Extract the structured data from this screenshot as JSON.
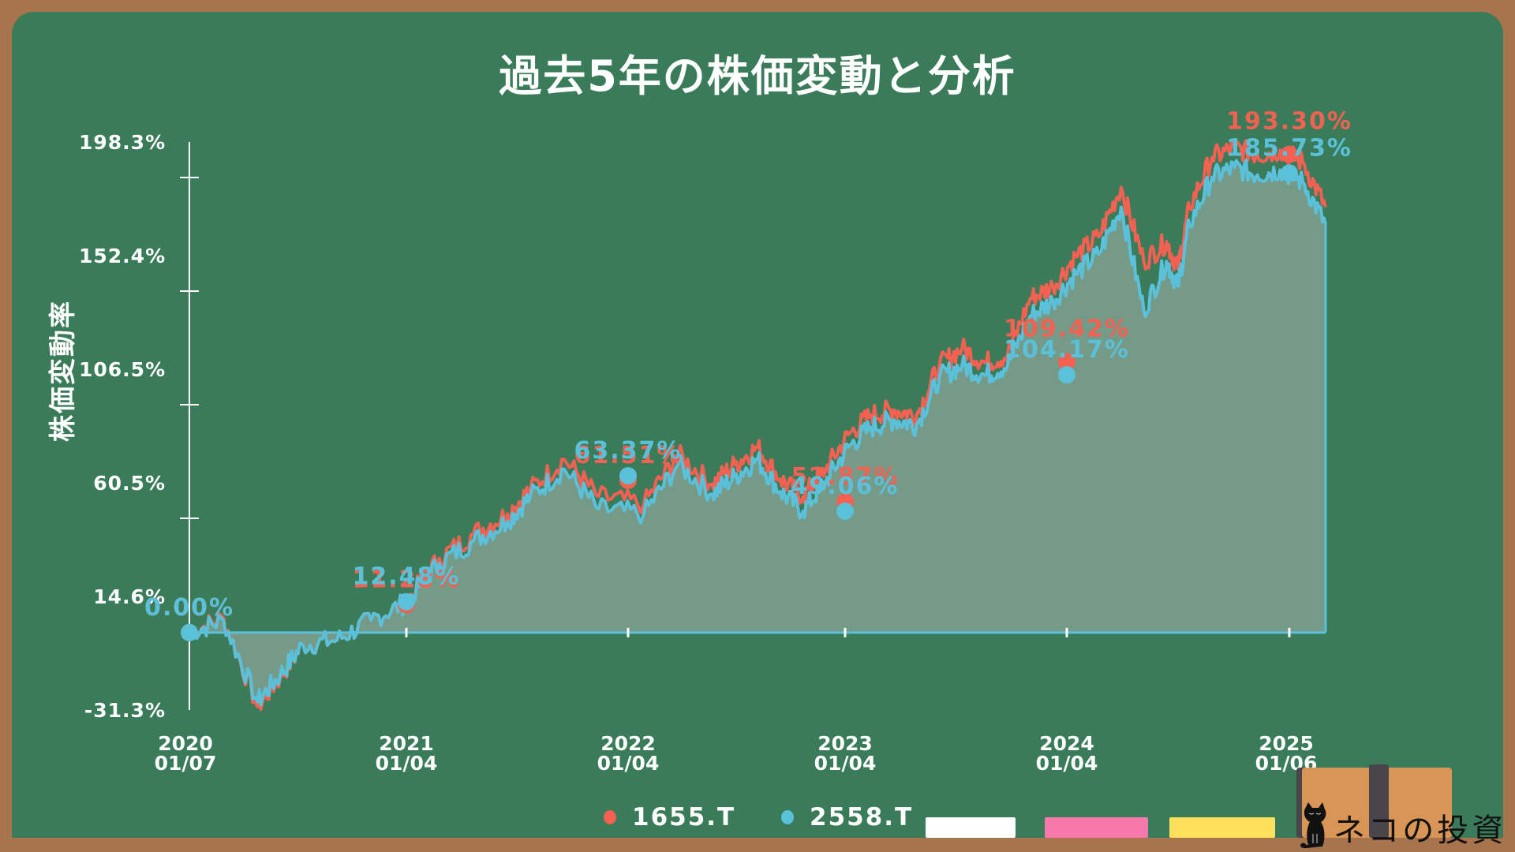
{
  "title": "過去5年の株価変動と分析",
  "colors": {
    "background_board": "#3a7b59",
    "frame": "#a8744d",
    "series_1655": "#f26152",
    "series_2558": "#5bc1da",
    "area_fill": "#6b8b7d",
    "axis": "#ffffff"
  },
  "chart_data": {
    "type": "area",
    "title": "過去5年の株価変動と分析",
    "xlabel": "",
    "ylabel": "株価変動率",
    "ylim": [
      -31.3,
      198.3
    ],
    "y_ticks": [
      "198.3%",
      "152.4%",
      "106.5%",
      "60.5%",
      "14.6%",
      "-31.3%"
    ],
    "x_ticks": [
      {
        "year": "2020",
        "date": "01/07"
      },
      {
        "year": "2021",
        "date": "01/04"
      },
      {
        "year": "2022",
        "date": "01/04"
      },
      {
        "year": "2023",
        "date": "01/04"
      },
      {
        "year": "2024",
        "date": "01/04"
      },
      {
        "year": "2025",
        "date": "01/06"
      }
    ],
    "legend_position": "bottom",
    "grid": false,
    "x_positions": [
      0,
      0.03,
      0.06,
      0.08,
      0.1,
      0.13,
      0.16,
      0.19,
      0.22,
      0.25,
      0.28,
      0.3,
      0.33,
      0.36,
      0.4,
      0.43,
      0.46,
      0.48,
      0.5,
      0.52,
      0.54,
      0.56,
      0.58,
      0.6,
      0.62,
      0.64,
      0.66,
      0.68,
      0.7,
      0.72,
      0.74,
      0.76,
      0.78,
      0.8,
      0.82,
      0.84,
      0.86,
      0.87,
      0.88,
      0.9,
      0.92,
      0.94,
      0.96,
      0.98,
      1.0
    ],
    "series": [
      {
        "name": "1655.T",
        "color": "#f26152",
        "values": [
          0,
          6,
          -30,
          -18,
          -5,
          -3,
          5,
          12,
          30,
          40,
          48,
          58,
          70,
          55,
          52,
          72,
          60,
          68,
          75,
          62,
          55,
          66,
          80,
          88,
          90,
          88,
          108,
          115,
          109,
          112,
          135,
          140,
          152,
          160,
          180,
          150,
          158,
          147,
          172,
          192,
          196,
          193,
          195,
          190,
          172
        ],
        "annotations": [
          {
            "x_tick": "2020 01/07",
            "value": "0.00%"
          },
          {
            "x_tick": "2021 01/04",
            "value": "11.28%"
          },
          {
            "x_tick": "2022 01/04",
            "value": "61.51%"
          },
          {
            "x_tick": "2023 01/04",
            "value": "52.87%"
          },
          {
            "x_tick": "2024 01/04",
            "value": "109.42%"
          },
          {
            "x_tick": "2025 01/06",
            "value": "193.30%"
          }
        ]
      },
      {
        "name": "2558.T",
        "color": "#5bc1da",
        "values": [
          0,
          5,
          -28,
          -17,
          -5,
          -3,
          5,
          12,
          28,
          37,
          45,
          55,
          66,
          50,
          48,
          68,
          56,
          63,
          70,
          57,
          49,
          61,
          75,
          83,
          86,
          84,
          103,
          108,
          104,
          108,
          128,
          134,
          145,
          153,
          172,
          130,
          150,
          140,
          165,
          184,
          188,
          185,
          187,
          182,
          165
        ],
        "annotations": [
          {
            "x_tick": "2020 01/07",
            "value": "0.00%"
          },
          {
            "x_tick": "2021 01/04",
            "value": "12.48%"
          },
          {
            "x_tick": "2022 01/04",
            "value": "63.37%"
          },
          {
            "x_tick": "2023 01/04",
            "value": "49.06%"
          },
          {
            "x_tick": "2024 01/04",
            "value": "104.17%"
          },
          {
            "x_tick": "2025 01/06",
            "value": "185.73%"
          }
        ]
      }
    ]
  },
  "legend": [
    {
      "label": "1655.T",
      "color": "#f26152"
    },
    {
      "label": "2558.T",
      "color": "#5bc1da"
    }
  ],
  "chalks": [
    {
      "color": "#ffffff"
    },
    {
      "color": "#f779ab"
    },
    {
      "color": "#ffe05a"
    }
  ],
  "logo": {
    "text": "ネコの投資"
  }
}
